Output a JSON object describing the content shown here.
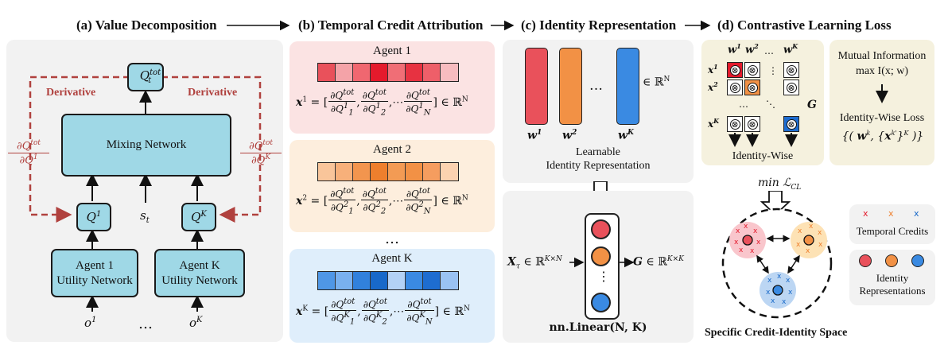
{
  "titles": {
    "a": "(a) Value Decomposition",
    "b": "(b) Temporal Credit Attribution",
    "c": "(c) Identity Representation",
    "d": "(d) Contrastive Learning Loss"
  },
  "panel_a": {
    "q_tot": "Q",
    "q_tot_sup": "tot",
    "q_tot_sub": "t",
    "mixing_label": "Mixing Network",
    "derivative_left": "Derivative",
    "derivative_right": "Derivative",
    "deriv_left_num": "∂Q",
    "deriv_left_num_sup": "tot",
    "deriv_left_num_sub": "t",
    "deriv_left_den": "∂Q",
    "deriv_left_den_sup": "1",
    "deriv_left_den_sub": "t",
    "deriv_right_num": "∂Q",
    "deriv_right_num_sup": "tot",
    "deriv_right_num_sub": "t",
    "deriv_right_den": "∂Q",
    "deriv_right_den_sup": "K",
    "deriv_right_den_sub": "t",
    "q1": "Q",
    "q1_sup": "1",
    "q1_sub": "t",
    "qk": "Q",
    "qk_sup": "K",
    "qk_sub": "t",
    "state": "s",
    "state_sub": "t",
    "agent1_line1": "Agent 1",
    "agent1_line2": "Utility Network",
    "agentk_line1": "Agent K",
    "agentk_line2": "Utility Network",
    "obs1": "o",
    "obs1_sup": "1",
    "obs1_sub": "t",
    "obsk": "o",
    "obsk_sup": "K",
    "obsk_sub": "t",
    "ellipsis": "…"
  },
  "panel_b": {
    "agent1_title": "Agent 1",
    "agent2_title": "Agent 2",
    "agentk_title": "Agent K",
    "vertical_dots": "…",
    "agent1_colors": [
      "#e9515b",
      "#f4a3a8",
      "#f06770",
      "#e41a2c",
      "#f06e76",
      "#e73241",
      "#ee5f69",
      "#f7bcc0"
    ],
    "agent2_colors": [
      "#f9c59a",
      "#f7b07a",
      "#f2954e",
      "#ee7f2d",
      "#f39b54",
      "#f29145",
      "#f59d5f",
      "#fbd3b0"
    ],
    "agentk_colors": [
      "#4f97e6",
      "#79b1ef",
      "#3181dc",
      "#1869c9",
      "#b3d2f5",
      "#3a8ae2",
      "#1e6dd0",
      "#9ac3f2"
    ],
    "formula1_lhs": "x",
    "formula1_lhs_sup": "1",
    "formula1_lhs_sub": "τ",
    "formula2_lhs": "x",
    "formula2_lhs_sup": "2",
    "formula2_lhs_sub": "τ",
    "formulak_lhs": "x",
    "formulak_lhs_sup": "K",
    "formulak_lhs_sub": "τ",
    "in_space": "∈ ℝ",
    "space_sup": "N"
  },
  "panel_c": {
    "w1": "w",
    "w1_sup": "1",
    "w2": "w",
    "w2_sup": "2",
    "wk": "w",
    "wk_sup": "K",
    "dots": "…",
    "in_space": "∈ ℝ",
    "space_sup": "N",
    "learnable_line1": "Learnable",
    "learnable_line2": "Identity Representation",
    "x_input": "X",
    "x_input_sub": "τ",
    "x_input_space": "∈ ℝ",
    "x_input_space_sup": "K×N",
    "g_output": "G",
    "g_output_space": "∈ ℝ",
    "g_output_space_sup": "K×K",
    "linear_label": "nn.Linear(N, K)",
    "vdots": "⋮"
  },
  "panel_d": {
    "w1": "w",
    "w1_sup": "1",
    "w2": "w",
    "w2_sup": "2",
    "wk": "w",
    "wk_sup": "K",
    "x1": "x",
    "x1_sup": "1",
    "x1_sub": "τ",
    "x2": "x",
    "x2_sup": "2",
    "x2_sub": "τ",
    "xk": "x",
    "xk_sup": "K",
    "xk_sub": "τ",
    "g_label": "G",
    "otimes": "⊗",
    "dots_h": "…",
    "dots_v": "⋮",
    "dots_d": "⋱",
    "identity_wise": "Identity-Wise",
    "mi_line1": "Mutual Information",
    "mi_line2": "max I(x; w)",
    "identity_loss": "Identity-Wise Loss",
    "identity_loss_formula": "{ (w^k, {x_τ^k'}_{k'=1}^K) }",
    "min_loss": "min ℒ",
    "min_loss_sub": "CL",
    "temporal_credits": "Temporal Credits",
    "identity_rep_line1": "Identity",
    "identity_rep_line2": "Representations",
    "space_label": "Specific Credit-Identity Space",
    "x_mark": "x"
  },
  "colors": {
    "panel_a_bg": "#f2f2f2",
    "agent1_bg": "#fbe3e3",
    "agent2_bg": "#fdeedd",
    "agentk_bg": "#dfeefb",
    "panel_c_bg": "#f2f2f2",
    "panel_d_bg": "#f5f1de",
    "box_blue": "#9fd8e6",
    "derivative_red": "#b0413e",
    "red": "#e9515b",
    "orange": "#f29145",
    "blue": "#3a8ae2"
  }
}
